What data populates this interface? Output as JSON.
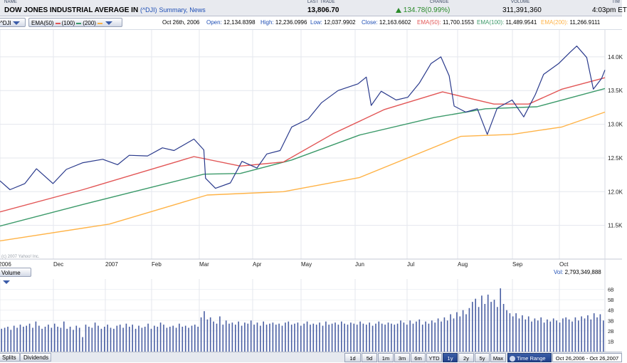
{
  "header": {
    "labels": {
      "name": "NAME",
      "last_trade": "LAST TRADE",
      "change": "CHANGE",
      "volume": "VOLUME",
      "time": "TIM"
    },
    "name": "DOW JONES INDUSTRIAL AVERAGE IN",
    "symbol": "(^DJI)",
    "links": "Summary, News",
    "last_trade": "13,806.70",
    "change": "134.78(0.99%)",
    "volume": "311,391,360",
    "time": "4:03pm ET"
  },
  "toolbar": {
    "symbol_button": "^DJI",
    "ema_button_a": "EMA(50)",
    "ema_button_b": "(100)",
    "ema_button_c": "(200)",
    "date": "Oct 26th, 2006",
    "open_label": "Open:",
    "open": "12,134.8398",
    "high_label": "High:",
    "high": "12,236.0996",
    "low_label": "Low:",
    "low": "12,037.9902",
    "close_label": "Close:",
    "close": "12,163.6602",
    "ema50_label": "EMA(50):",
    "ema50": "11,700.1553",
    "ema100_label": "EMA(100):",
    "ema100": "11,489.9541",
    "ema200_label": "EMA(200):",
    "ema200": "11,266.9111"
  },
  "watermark": "(c) 2007 Yahoo! Inc.",
  "volume_bar": {
    "button": "Volume",
    "vol_label": "Vol:",
    "vol_value": "2,793,349,888"
  },
  "bottom": {
    "tabs": [
      "Splits",
      "Dividends"
    ],
    "ranges": [
      "1d",
      "5d",
      "1m",
      "3m",
      "6m",
      "YTD",
      "1y",
      "2y",
      "5y",
      "Max"
    ],
    "selected_range": "1y",
    "time_range_label": "Time Range",
    "time_range_value": "Oct 26,2006 - Oct 26,2007"
  },
  "colors": {
    "price": "#2a3a8c",
    "ema50": "#e25656",
    "ema100": "#3c9a6a",
    "ema200": "#ffb347",
    "volume": "#4a5fa3",
    "change_up": "#2a8a2a"
  },
  "chart_data": [
    {
      "type": "line",
      "x_tick_labels": [
        "2006",
        "Dec",
        "2007",
        "Feb",
        "Mar",
        "Apr",
        "May",
        "Jun",
        "Jul",
        "Aug",
        "Sep",
        "Oct"
      ],
      "y_tick_labels": [
        "14.0K",
        "13.5K",
        "13.0K",
        "12.5K",
        "12.0K",
        "11.5K"
      ],
      "ylim": [
        11000,
        14400
      ],
      "x_start": "2006-10-26",
      "x_end": "2007-10-26",
      "grid": true,
      "series": [
        {
          "name": "^DJI",
          "color": "#2a3a8c",
          "points": [
            [
              "2006-10-26",
              12160
            ],
            [
              "2006-11-01",
              12030
            ],
            [
              "2006-11-10",
              12120
            ],
            [
              "2006-11-17",
              12340
            ],
            [
              "2006-11-27",
              12120
            ],
            [
              "2006-12-05",
              12330
            ],
            [
              "2006-12-15",
              12430
            ],
            [
              "2006-12-27",
              12480
            ],
            [
              "2007-01-05",
              12400
            ],
            [
              "2007-01-12",
              12540
            ],
            [
              "2007-01-23",
              12530
            ],
            [
              "2007-02-01",
              12650
            ],
            [
              "2007-02-08",
              12610
            ],
            [
              "2007-02-20",
              12780
            ],
            [
              "2007-02-26",
              12620
            ],
            [
              "2007-02-27",
              12200
            ],
            [
              "2007-03-05",
              12050
            ],
            [
              "2007-03-14",
              12130
            ],
            [
              "2007-03-21",
              12450
            ],
            [
              "2007-03-30",
              12350
            ],
            [
              "2007-04-05",
              12560
            ],
            [
              "2007-04-13",
              12610
            ],
            [
              "2007-04-20",
              12960
            ],
            [
              "2007-04-30",
              13080
            ],
            [
              "2007-05-08",
              13320
            ],
            [
              "2007-05-18",
              13500
            ],
            [
              "2007-05-30",
              13600
            ],
            [
              "2007-06-04",
              13700
            ],
            [
              "2007-06-07",
              13280
            ],
            [
              "2007-06-13",
              13490
            ],
            [
              "2007-06-22",
              13360
            ],
            [
              "2007-06-29",
              13400
            ],
            [
              "2007-07-06",
              13610
            ],
            [
              "2007-07-13",
              13900
            ],
            [
              "2007-07-19",
              14000
            ],
            [
              "2007-07-24",
              13720
            ],
            [
              "2007-07-27",
              13270
            ],
            [
              "2007-08-03",
              13180
            ],
            [
              "2007-08-10",
              13230
            ],
            [
              "2007-08-16",
              12850
            ],
            [
              "2007-08-22",
              13240
            ],
            [
              "2007-08-31",
              13360
            ],
            [
              "2007-09-07",
              13110
            ],
            [
              "2007-09-14",
              13440
            ],
            [
              "2007-09-19",
              13740
            ],
            [
              "2007-09-28",
              13900
            ],
            [
              "2007-10-05",
              14070
            ],
            [
              "2007-10-09",
              14160
            ],
            [
              "2007-10-15",
              13990
            ],
            [
              "2007-10-19",
              13520
            ],
            [
              "2007-10-24",
              13680
            ],
            [
              "2007-10-26",
              13806
            ]
          ]
        },
        {
          "name": "EMA(50)",
          "color": "#e25656",
          "points": [
            [
              "2006-10-26",
              11700
            ],
            [
              "2006-12-15",
              12030
            ],
            [
              "2007-02-20",
              12520
            ],
            [
              "2007-03-20",
              12380
            ],
            [
              "2007-04-15",
              12440
            ],
            [
              "2007-05-15",
              12860
            ],
            [
              "2007-06-15",
              13220
            ],
            [
              "2007-07-20",
              13480
            ],
            [
              "2007-08-20",
              13300
            ],
            [
              "2007-09-10",
              13300
            ],
            [
              "2007-09-30",
              13520
            ],
            [
              "2007-10-26",
              13690
            ]
          ]
        },
        {
          "name": "EMA(100)",
          "color": "#3c9a6a",
          "points": [
            [
              "2006-10-26",
              11490
            ],
            [
              "2006-12-15",
              11810
            ],
            [
              "2007-02-26",
              12260
            ],
            [
              "2007-03-20",
              12270
            ],
            [
              "2007-04-20",
              12470
            ],
            [
              "2007-05-31",
              12840
            ],
            [
              "2007-07-15",
              13100
            ],
            [
              "2007-08-15",
              13230
            ],
            [
              "2007-09-15",
              13260
            ],
            [
              "2007-10-26",
              13530
            ]
          ]
        },
        {
          "name": "EMA(200)",
          "color": "#ffb347",
          "points": [
            [
              "2006-10-26",
              11270
            ],
            [
              "2006-12-31",
              11520
            ],
            [
              "2007-02-28",
              11950
            ],
            [
              "2007-04-15",
              12000
            ],
            [
              "2007-05-31",
              12210
            ],
            [
              "2007-07-31",
              12820
            ],
            [
              "2007-08-31",
              12850
            ],
            [
              "2007-09-30",
              12960
            ],
            [
              "2007-10-26",
              13180
            ]
          ]
        }
      ]
    },
    {
      "type": "bar",
      "title": "Volume",
      "y_tick_labels": [
        "6B",
        "5B",
        "4B",
        "3B",
        "2B",
        "1B"
      ],
      "ylim": [
        0,
        7
      ],
      "units": "billions of shares",
      "values": [
        2.2,
        2.3,
        2.4,
        2.1,
        2.5,
        2.3,
        2.6,
        2.4,
        2.5,
        2.7,
        2.3,
        2.9,
        2.5,
        2.2,
        2.4,
        2.6,
        2.3,
        2.7,
        2.4,
        2.3,
        2.9,
        2.2,
        2.4,
        2.1,
        2.5,
        2.3,
        1.4,
        2.6,
        2.4,
        2.3,
        2.8,
        2.5,
        2.2,
        2.4,
        2.6,
        2.3,
        2.2,
        2.5,
        2.6,
        2.3,
        2.7,
        2.4,
        2.6,
        2.2,
        2.5,
        2.3,
        2.4,
        2.7,
        2.2,
        2.5,
        2.4,
        2.8,
        2.6,
        2.3,
        2.4,
        2.5,
        2.3,
        2.7,
        2.4,
        2.5,
        2.3,
        2.5,
        2.6,
        2.4,
        3.3,
        3.9,
        3.1,
        3.3,
        2.9,
        2.7,
        3.4,
        2.6,
        3.0,
        2.7,
        2.8,
        2.6,
        2.9,
        2.5,
        2.8,
        2.7,
        3.0,
        2.6,
        2.8,
        2.5,
        2.9,
        2.6,
        2.7,
        2.8,
        2.6,
        2.7,
        2.5,
        2.8,
        2.9,
        2.6,
        2.7,
        2.8,
        2.5,
        2.7,
        2.9,
        2.6,
        2.7,
        2.6,
        2.8,
        2.5,
        2.9,
        2.6,
        2.7,
        2.8,
        2.6,
        2.9,
        2.7,
        2.6,
        2.8,
        2.7,
        2.6,
        2.9,
        2.7,
        2.6,
        2.8,
        2.5,
        2.7,
        2.9,
        2.7,
        2.6,
        2.8,
        2.7,
        2.6,
        2.7,
        3.0,
        2.8,
        2.6,
        3.0,
        2.7,
        2.9,
        3.1,
        2.6,
        2.9,
        2.7,
        3.0,
        2.8,
        3.2,
        2.9,
        3.3,
        3.0,
        3.6,
        3.2,
        3.8,
        3.4,
        4.0,
        3.6,
        4.2,
        4.8,
        5.1,
        4.3,
        5.4,
        4.6,
        5.5,
        4.8,
        5.0,
        4.3,
        6.1,
        4.6,
        4.0,
        3.7,
        3.4,
        3.7,
        3.2,
        3.5,
        3.1,
        3.4,
        2.9,
        3.2,
        3.0,
        3.3,
        2.8,
        3.1,
        2.9,
        3.2,
        3.0,
        2.8,
        3.2,
        3.3,
        3.1,
        2.9,
        3.3,
        3.0,
        3.4,
        3.2,
        3.5,
        3.1,
        3.7,
        3.3,
        3.6,
        3.0
      ]
    }
  ]
}
